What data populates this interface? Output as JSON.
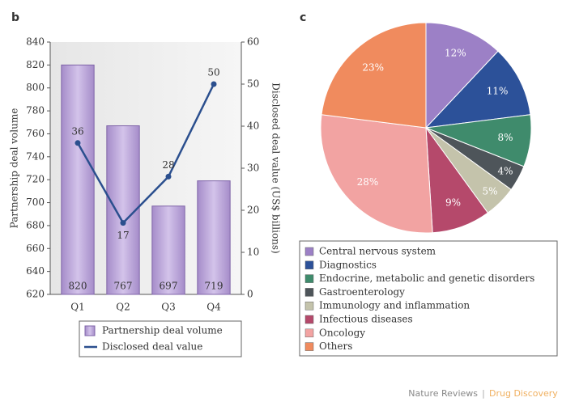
{
  "chart_data": [
    {
      "type": "bar",
      "panel": "b",
      "categories": [
        "Q1",
        "Q2",
        "Q3",
        "Q4"
      ],
      "ylabel": "Partnership deal volume",
      "y2label": "Disclosed deal value (US$ billions)",
      "ylim": [
        620,
        840
      ],
      "yticks": [
        620,
        640,
        660,
        680,
        700,
        720,
        740,
        760,
        780,
        800,
        820,
        840
      ],
      "y2lim": [
        0,
        60
      ],
      "y2ticks": [
        0,
        10,
        20,
        30,
        40,
        50,
        60
      ],
      "series": [
        {
          "name": "Partnership deal volume",
          "type": "bar",
          "color": "#bca7d9",
          "values": [
            820,
            767,
            697,
            719
          ]
        },
        {
          "name": "Disclosed deal value",
          "type": "line",
          "axis": "y2",
          "color": "#2b4f8e",
          "values": [
            36,
            17,
            28,
            50
          ]
        }
      ]
    },
    {
      "type": "pie",
      "panel": "c",
      "categories": [
        "Central nervous system",
        "Diagnostics",
        "Endocrine, metabolic and genetic disorders",
        "Gastroenterology",
        "Immunology and inflammation",
        "Infectious diseases",
        "Oncology",
        "Others"
      ],
      "values": [
        12,
        11,
        8,
        4,
        5,
        9,
        28,
        23
      ],
      "value_labels": [
        "12%",
        "11%",
        "8%",
        "4%",
        "5%",
        "9%",
        "28%",
        "23%"
      ],
      "colors": [
        "#9c80c6",
        "#2c5199",
        "#3f8b6c",
        "#4e555a",
        "#c4c3ab",
        "#b5496b",
        "#f2a3a2",
        "#f08b5e"
      ]
    }
  ],
  "footer": {
    "journal": "Nature Reviews",
    "separator": "|",
    "section": "Drug Discovery"
  }
}
